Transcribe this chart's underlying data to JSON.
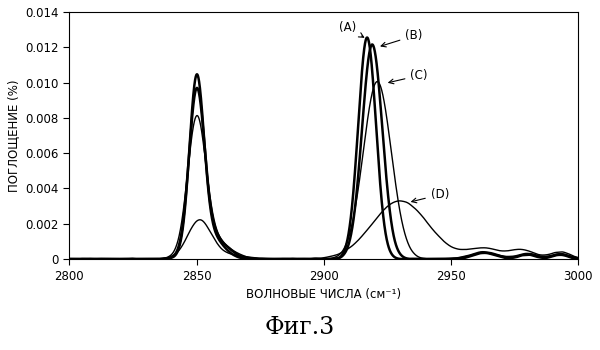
{
  "title": "Фиг.3",
  "xlabel": "ВОЛНОВЫЕ ЧИСЛА (см⁻¹)",
  "ylabel": "ПОГЛОЩЕНИЕ (%)",
  "xlim": [
    2800,
    3000
  ],
  "ylim": [
    0,
    0.014
  ],
  "yticks": [
    0,
    0.002,
    0.004,
    0.006,
    0.008,
    0.01,
    0.012,
    0.014
  ],
  "xticks": [
    2800,
    2850,
    2900,
    2950,
    3000
  ],
  "background_color": "#ffffff"
}
